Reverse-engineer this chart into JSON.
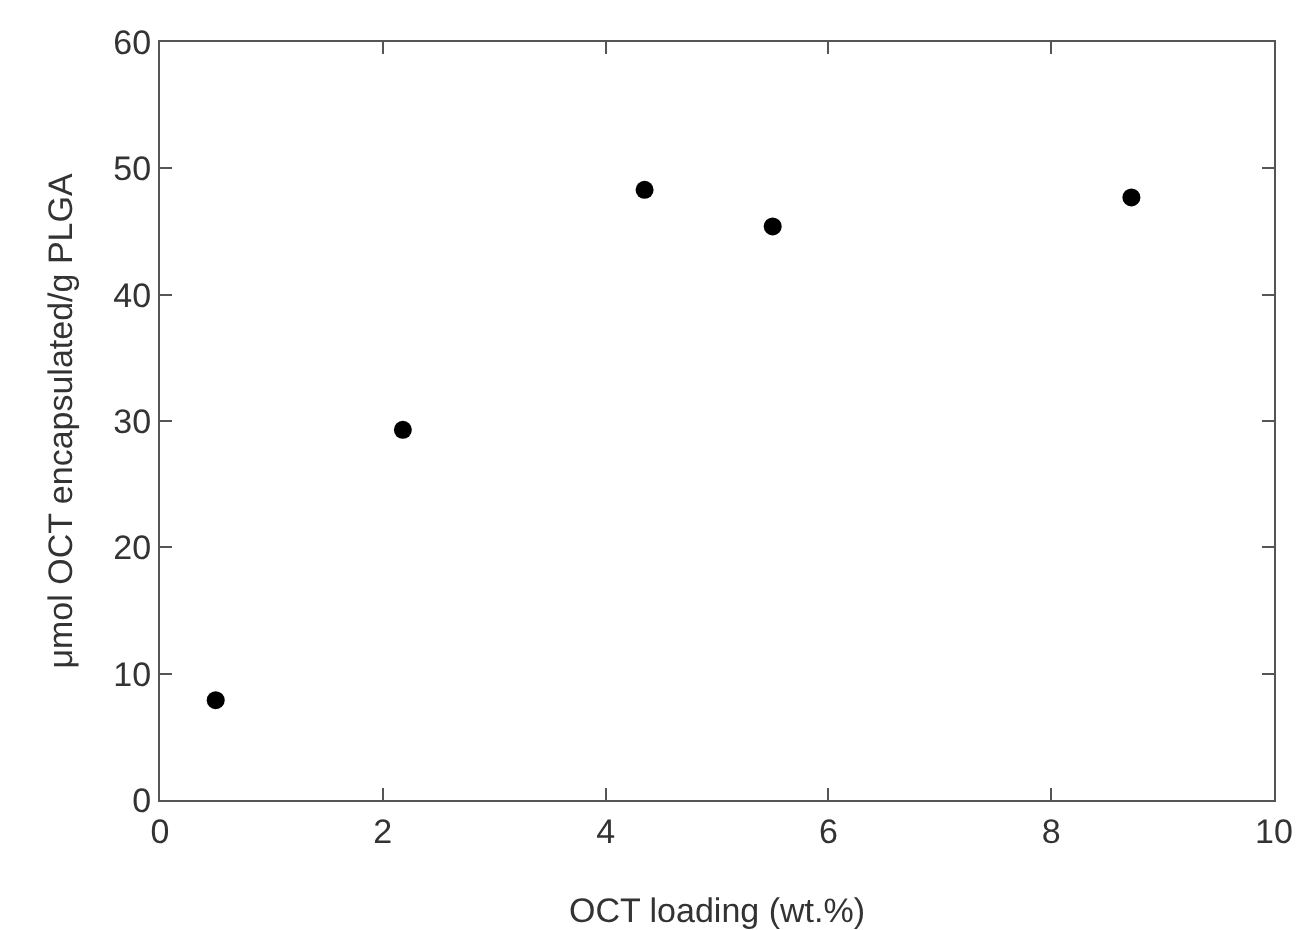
{
  "chart_data": {
    "type": "scatter",
    "xlabel": "OCT loading (wt.%)",
    "ylabel": "μmol OCT encapsulated/g PLGA",
    "x": [
      0.5,
      2.18,
      4.35,
      5.5,
      8.72
    ],
    "values": [
      7.9,
      29.3,
      48.3,
      45.4,
      47.7
    ],
    "color": "#000000",
    "marker": "circle",
    "xlim": [
      0,
      10
    ],
    "xticks": [
      0,
      2,
      4,
      6,
      8,
      10
    ],
    "ylim": [
      0,
      60
    ],
    "yticks": [
      0,
      10,
      20,
      30,
      40,
      50,
      60
    ],
    "grid": false
  }
}
